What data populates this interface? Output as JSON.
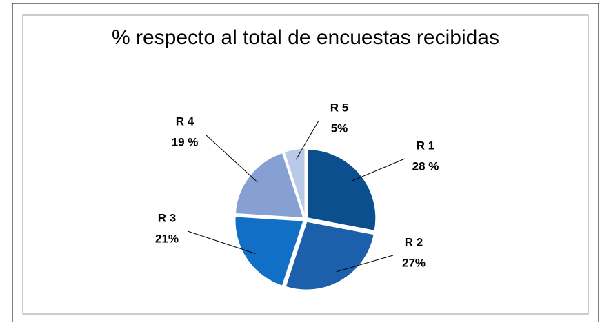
{
  "chart_data": {
    "type": "pie",
    "title": "% respecto al total de encuestas recibidas",
    "categories": [
      "R 1",
      "R 2",
      "R 3",
      "R 4",
      "R 5"
    ],
    "values": [
      28,
      27,
      21,
      19,
      5
    ],
    "value_labels": [
      "28 %",
      "27%",
      "21%",
      "19 %",
      "5%"
    ],
    "colors": [
      "#0b4f8e",
      "#1c5fab",
      "#1170c6",
      "#86a0d4",
      "#b9c9e8"
    ]
  }
}
